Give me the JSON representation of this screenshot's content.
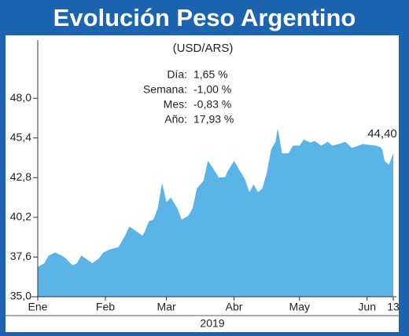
{
  "chart_data": {
    "type": "area",
    "title": "Evolución Peso Argentino",
    "subtitle": "(USD/ARS)",
    "xlabel": "2019",
    "stats": [
      {
        "label": "Día:",
        "value": "1,65 %"
      },
      {
        "label": "Semana:",
        "value": "-1,00 %"
      },
      {
        "label": "Mes:",
        "value": "-0,83 %"
      },
      {
        "label": "Año:",
        "value": "17,93 %"
      }
    ],
    "color": "#5ab4e6",
    "x": [
      1,
      4,
      6,
      9,
      12,
      14,
      17,
      19,
      21,
      23,
      26,
      29,
      31,
      34,
      38,
      41,
      43,
      45,
      49,
      50,
      52,
      54,
      56,
      58,
      60,
      62,
      65,
      67,
      70,
      72,
      74,
      77,
      79,
      81,
      84,
      87,
      88,
      91,
      93,
      96,
      98,
      100,
      102,
      104,
      106,
      108,
      110,
      111,
      113,
      116,
      118,
      121,
      123,
      126,
      128,
      131,
      134,
      136,
      139,
      142,
      145,
      148,
      150,
      153,
      156,
      158,
      159,
      160,
      162,
      164
    ],
    "values": [
      36.95,
      37.2,
      37.7,
      37.9,
      37.7,
      37.5,
      37.05,
      37.2,
      37.7,
      37.5,
      37.2,
      37.5,
      37.9,
      38.1,
      38.25,
      39.0,
      39.6,
      39.4,
      39.0,
      39.25,
      39.95,
      40.05,
      40.8,
      42.45,
      41.2,
      41.5,
      40.8,
      40.05,
      40.3,
      40.8,
      42.1,
      42.6,
      43.9,
      43.5,
      42.8,
      42.85,
      43.2,
      43.9,
      43.4,
      42.7,
      41.85,
      42.35,
      41.85,
      42.1,
      43.1,
      44.65,
      45.15,
      46.05,
      44.4,
      44.4,
      44.9,
      44.9,
      45.3,
      45.1,
      45.2,
      44.9,
      45.15,
      44.9,
      45.0,
      45.15,
      44.75,
      44.9,
      45.0,
      44.95,
      44.9,
      44.8,
      44.65,
      43.9,
      43.65,
      44.4
    ],
    "value_labels": [
      null,
      null,
      null,
      null,
      null,
      null,
      null,
      null,
      null,
      null,
      null,
      null,
      null,
      null,
      null,
      null,
      null,
      null,
      null,
      null,
      null,
      null,
      null,
      null,
      null,
      null,
      null,
      null,
      null,
      null,
      null,
      null,
      null,
      null,
      null,
      null,
      null,
      null,
      null,
      null,
      null,
      null,
      null,
      null,
      null,
      null,
      null,
      null,
      null,
      null,
      null,
      null,
      null,
      null,
      null,
      null,
      null,
      null,
      null,
      null,
      null,
      null,
      null,
      null,
      null,
      null,
      null,
      null,
      null,
      "44,40"
    ],
    "xlim": [
      1,
      164
    ],
    "xticks": [
      {
        "value": 1,
        "label": "Ene"
      },
      {
        "value": 32,
        "label": "Feb"
      },
      {
        "value": 60,
        "label": "Mar"
      },
      {
        "value": 91,
        "label": "Abr"
      },
      {
        "value": 121,
        "label": "May"
      },
      {
        "value": 152,
        "label": "Jun"
      },
      {
        "value": 164,
        "label": "13"
      }
    ],
    "ylim": [
      35,
      51.3
    ],
    "yticks": [
      {
        "value": 35,
        "label": "35,0"
      },
      {
        "value": 37.6,
        "label": "37,6"
      },
      {
        "value": 40.2,
        "label": "40,2"
      },
      {
        "value": 42.8,
        "label": "42,8"
      },
      {
        "value": 45.4,
        "label": "45,4"
      },
      {
        "value": 48,
        "label": "48,0"
      }
    ]
  }
}
